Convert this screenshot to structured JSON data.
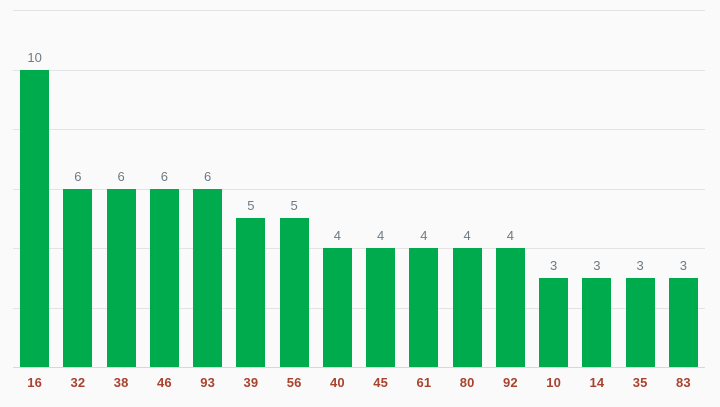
{
  "chart_data": {
    "type": "bar",
    "title": "",
    "xlabel": "",
    "ylabel": "",
    "categories": [
      "16",
      "32",
      "38",
      "46",
      "93",
      "39",
      "56",
      "40",
      "45",
      "61",
      "80",
      "92",
      "10",
      "14",
      "35",
      "83"
    ],
    "values": [
      10,
      6,
      6,
      6,
      6,
      5,
      5,
      4,
      4,
      4,
      4,
      4,
      3,
      3,
      3,
      3
    ],
    "ylim": [
      0,
      12
    ],
    "gridline_step": 2,
    "grid": true,
    "y_axis_labels_shown": false,
    "value_annotations_shown": true,
    "legend_position": "none"
  },
  "colors": {
    "background": "#fafafa",
    "bar": "#00ab4e",
    "x_label": "#a8432f",
    "value_label": "#6e7a84",
    "gridline": "#e3e3e3",
    "axis_line": "#d8d8d8"
  }
}
